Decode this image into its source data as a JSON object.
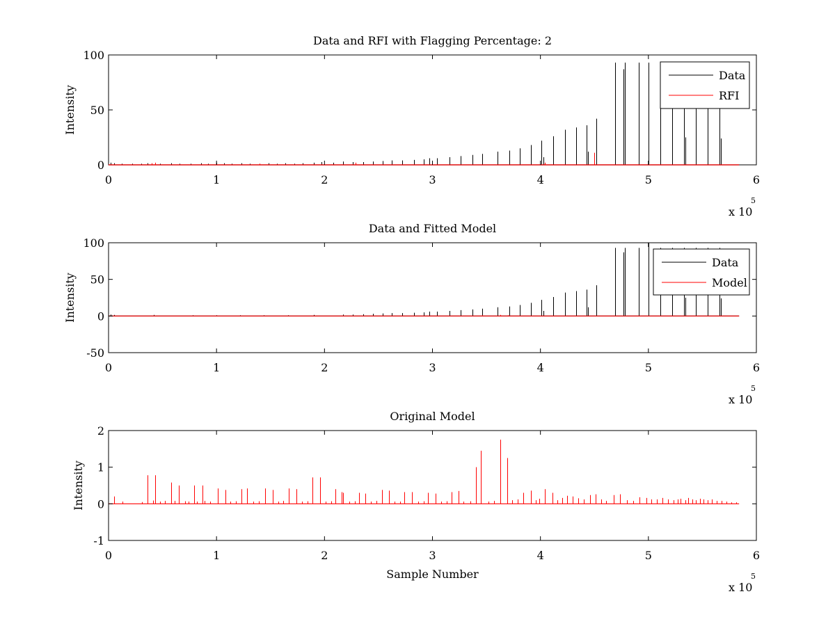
{
  "chart_data": [
    {
      "type": "line",
      "title": "Data and RFI with Flagging Percentage: 2",
      "xlabel": "",
      "ylabel": "Intensity",
      "xlim": [
        0,
        6
      ],
      "ylim": [
        0,
        100
      ],
      "x_ticks": [
        "0",
        "1",
        "2",
        "3",
        "4",
        "5",
        "6"
      ],
      "y_ticks": [
        "0",
        "50",
        "100"
      ],
      "x_exponent": "x 10",
      "x_exponent_power": "5",
      "x_range_end": 5.84,
      "legend": {
        "position": "top-right",
        "entries": [
          "Data",
          "RFI"
        ]
      },
      "series": [
        {
          "name": "Data",
          "color": "#000000",
          "spikes": [
            [
              0.02,
              2
            ],
            [
              0.05,
              1.5
            ],
            [
              0.12,
              1
            ],
            [
              0.22,
              1
            ],
            [
              0.3,
              1
            ],
            [
              0.36,
              1.5
            ],
            [
              0.43,
              1.5
            ],
            [
              0.48,
              1
            ],
            [
              0.58,
              1.5
            ],
            [
              0.66,
              1
            ],
            [
              0.76,
              1
            ],
            [
              0.86,
              1.5
            ],
            [
              0.92,
              1
            ],
            [
              1.0,
              2
            ],
            [
              1.07,
              1.5
            ],
            [
              1.14,
              1
            ],
            [
              1.23,
              1.5
            ],
            [
              1.31,
              1
            ],
            [
              1.4,
              1
            ],
            [
              1.48,
              1.5
            ],
            [
              1.56,
              1
            ],
            [
              1.64,
              1.5
            ],
            [
              1.72,
              1
            ],
            [
              1.8,
              1.5
            ],
            [
              1.9,
              2
            ],
            [
              1.97,
              2.5
            ],
            [
              2.08,
              2
            ],
            [
              2.17,
              3
            ],
            [
              2.26,
              2.5
            ],
            [
              2.36,
              2.5
            ],
            [
              2.45,
              3
            ],
            [
              2.54,
              3.5
            ],
            [
              2.62,
              4
            ],
            [
              2.72,
              4
            ],
            [
              2.83,
              4.5
            ],
            [
              2.92,
              5
            ],
            [
              2.97,
              6
            ],
            [
              3.04,
              6
            ],
            [
              3.16,
              7
            ],
            [
              3.26,
              8
            ],
            [
              3.37,
              9
            ],
            [
              3.46,
              10
            ],
            [
              3.6,
              12
            ],
            [
              3.71,
              13
            ],
            [
              3.81,
              15
            ],
            [
              3.91,
              18
            ],
            [
              4.01,
              22
            ],
            [
              4.03,
              7
            ],
            [
              4.12,
              26
            ],
            [
              4.23,
              32
            ],
            [
              4.33,
              34
            ],
            [
              4.43,
              36
            ],
            [
              4.44,
              12
            ],
            [
              4.52,
              42
            ],
            [
              4.69,
              93
            ],
            [
              4.77,
              87
            ],
            [
              4.78,
              93
            ],
            [
              4.91,
              93
            ],
            [
              5.0,
              93
            ],
            [
              5.11,
              93
            ],
            [
              5.22,
              93
            ],
            [
              5.33,
              93
            ],
            [
              5.34,
              25
            ],
            [
              5.44,
              93
            ],
            [
              5.55,
              93
            ],
            [
              5.66,
              93
            ],
            [
              5.67,
              24
            ]
          ]
        },
        {
          "name": "RFI",
          "color": "#ff0000",
          "spikes": [
            [
              0.4,
              1.5
            ],
            [
              0.43,
              2
            ],
            [
              1.4,
              1
            ],
            [
              2.29,
              2
            ],
            [
              4.04,
              2
            ],
            [
              4.5,
              11
            ]
          ]
        }
      ]
    },
    {
      "type": "line",
      "title": "Data and Fitted Model",
      "xlabel": "",
      "ylabel": "Intensity",
      "xlim": [
        0,
        6
      ],
      "ylim": [
        -50,
        100
      ],
      "x_ticks": [
        "0",
        "1",
        "2",
        "3",
        "4",
        "5",
        "6"
      ],
      "y_ticks": [
        "-50",
        "0",
        "50",
        "100"
      ],
      "x_exponent": "x 10",
      "x_exponent_power": "5",
      "x_range_end": 5.84,
      "legend": {
        "position": "top-right",
        "entries": [
          "Data",
          "Model"
        ]
      },
      "series": [
        {
          "name": "Data",
          "color": "#000000",
          "spikes": [
            [
              0.02,
              2
            ],
            [
              0.05,
              1.5
            ],
            [
              0.42,
              1.5
            ],
            [
              0.78,
              1
            ],
            [
              1.0,
              1
            ],
            [
              1.22,
              1
            ],
            [
              1.44,
              1
            ],
            [
              1.66,
              1
            ],
            [
              1.9,
              1.5
            ],
            [
              2.17,
              2
            ],
            [
              2.26,
              2
            ],
            [
              2.36,
              2.5
            ],
            [
              2.45,
              3
            ],
            [
              2.54,
              3.5
            ],
            [
              2.62,
              4
            ],
            [
              2.72,
              4
            ],
            [
              2.83,
              4.5
            ],
            [
              2.92,
              5
            ],
            [
              2.97,
              6
            ],
            [
              3.04,
              6
            ],
            [
              3.16,
              7
            ],
            [
              3.26,
              8
            ],
            [
              3.37,
              9
            ],
            [
              3.46,
              10
            ],
            [
              3.6,
              12
            ],
            [
              3.71,
              13
            ],
            [
              3.81,
              15
            ],
            [
              3.91,
              18
            ],
            [
              4.01,
              22
            ],
            [
              4.03,
              7
            ],
            [
              4.12,
              26
            ],
            [
              4.23,
              32
            ],
            [
              4.33,
              34
            ],
            [
              4.43,
              36
            ],
            [
              4.44,
              12
            ],
            [
              4.52,
              42
            ],
            [
              4.69,
              93
            ],
            [
              4.77,
              87
            ],
            [
              4.78,
              93
            ],
            [
              4.91,
              93
            ],
            [
              5.0,
              100
            ],
            [
              5.11,
              93
            ],
            [
              5.22,
              93
            ],
            [
              5.33,
              93
            ],
            [
              5.34,
              25
            ],
            [
              5.44,
              93
            ],
            [
              5.55,
              93
            ],
            [
              5.66,
              93
            ],
            [
              5.67,
              24
            ]
          ]
        },
        {
          "name": "Model",
          "color": "#ff0000",
          "spikes": [
            [
              0.42,
              0.5
            ],
            [
              1.91,
              0.5
            ],
            [
              2.17,
              0.5
            ],
            [
              3.46,
              1
            ],
            [
              3.63,
              1.5
            ],
            [
              3.7,
              1
            ]
          ]
        }
      ]
    },
    {
      "type": "line",
      "title": "Original Model",
      "xlabel": "Sample Number",
      "ylabel": "Intensity",
      "xlim": [
        0,
        6
      ],
      "ylim": [
        -1,
        2
      ],
      "x_ticks": [
        "0",
        "1",
        "2",
        "3",
        "4",
        "5",
        "6"
      ],
      "y_ticks": [
        "-1",
        "0",
        "1",
        "2"
      ],
      "x_exponent": "x 10",
      "x_exponent_power": "5",
      "x_range_end": 5.84,
      "series": [
        {
          "name": "Model",
          "color": "#ff0000",
          "spikes": [
            [
              0.05,
              0.2
            ],
            [
              0.13,
              0.06
            ],
            [
              0.31,
              0.05
            ],
            [
              0.36,
              0.78
            ],
            [
              0.41,
              0.09
            ],
            [
              0.43,
              0.78
            ],
            [
              0.48,
              0.06
            ],
            [
              0.52,
              0.08
            ],
            [
              0.58,
              0.58
            ],
            [
              0.61,
              0.08
            ],
            [
              0.65,
              0.5
            ],
            [
              0.71,
              0.07
            ],
            [
              0.74,
              0.06
            ],
            [
              0.79,
              0.5
            ],
            [
              0.82,
              0.06
            ],
            [
              0.87,
              0.5
            ],
            [
              0.89,
              0.08
            ],
            [
              0.94,
              0.06
            ],
            [
              1.01,
              0.42
            ],
            [
              1.08,
              0.38
            ],
            [
              1.13,
              0.06
            ],
            [
              1.18,
              0.07
            ],
            [
              1.23,
              0.4
            ],
            [
              1.28,
              0.42
            ],
            [
              1.34,
              0.06
            ],
            [
              1.39,
              0.07
            ],
            [
              1.45,
              0.42
            ],
            [
              1.52,
              0.38
            ],
            [
              1.57,
              0.06
            ],
            [
              1.62,
              0.08
            ],
            [
              1.67,
              0.42
            ],
            [
              1.74,
              0.4
            ],
            [
              1.79,
              0.06
            ],
            [
              1.84,
              0.07
            ],
            [
              1.89,
              0.72
            ],
            [
              1.96,
              0.72
            ],
            [
              2.01,
              0.06
            ],
            [
              2.06,
              0.07
            ],
            [
              2.1,
              0.4
            ],
            [
              2.16,
              0.32
            ],
            [
              2.17,
              0.3
            ],
            [
              2.23,
              0.06
            ],
            [
              2.28,
              0.07
            ],
            [
              2.32,
              0.3
            ],
            [
              2.38,
              0.28
            ],
            [
              2.43,
              0.06
            ],
            [
              2.48,
              0.08
            ],
            [
              2.53,
              0.38
            ],
            [
              2.6,
              0.36
            ],
            [
              2.65,
              0.06
            ],
            [
              2.7,
              0.06
            ],
            [
              2.74,
              0.32
            ],
            [
              2.81,
              0.32
            ],
            [
              2.87,
              0.06
            ],
            [
              2.92,
              0.07
            ],
            [
              2.96,
              0.3
            ],
            [
              3.03,
              0.28
            ],
            [
              3.08,
              0.06
            ],
            [
              3.13,
              0.07
            ],
            [
              3.18,
              0.32
            ],
            [
              3.24,
              0.35
            ],
            [
              3.29,
              0.06
            ],
            [
              3.35,
              0.07
            ],
            [
              3.4,
              1.0
            ],
            [
              3.45,
              1.45
            ],
            [
              3.52,
              0.06
            ],
            [
              3.57,
              0.08
            ],
            [
              3.63,
              1.75
            ],
            [
              3.69,
              1.25
            ],
            [
              3.74,
              0.1
            ],
            [
              3.79,
              0.12
            ],
            [
              3.84,
              0.3
            ],
            [
              3.91,
              0.36
            ],
            [
              3.96,
              0.1
            ],
            [
              3.99,
              0.14
            ],
            [
              4.04,
              0.4
            ],
            [
              4.11,
              0.3
            ],
            [
              4.16,
              0.1
            ],
            [
              4.2,
              0.16
            ],
            [
              4.25,
              0.22
            ],
            [
              4.3,
              0.2
            ],
            [
              4.35,
              0.15
            ],
            [
              4.4,
              0.12
            ],
            [
              4.46,
              0.24
            ],
            [
              4.51,
              0.26
            ],
            [
              4.56,
              0.12
            ],
            [
              4.61,
              0.08
            ],
            [
              4.68,
              0.24
            ],
            [
              4.74,
              0.26
            ],
            [
              4.8,
              0.1
            ],
            [
              4.86,
              0.08
            ],
            [
              4.92,
              0.18
            ],
            [
              4.98,
              0.16
            ],
            [
              5.03,
              0.12
            ],
            [
              5.08,
              0.12
            ],
            [
              5.13,
              0.16
            ],
            [
              5.18,
              0.12
            ],
            [
              5.23,
              0.1
            ],
            [
              5.27,
              0.12
            ],
            [
              5.3,
              0.14
            ],
            [
              5.34,
              0.1
            ],
            [
              5.37,
              0.16
            ],
            [
              5.41,
              0.12
            ],
            [
              5.44,
              0.1
            ],
            [
              5.48,
              0.14
            ],
            [
              5.51,
              0.12
            ],
            [
              5.55,
              0.1
            ],
            [
              5.59,
              0.12
            ],
            [
              5.63,
              0.08
            ],
            [
              5.68,
              0.08
            ],
            [
              5.72,
              0.06
            ],
            [
              5.77,
              0.04
            ],
            [
              5.81,
              0.04
            ]
          ]
        }
      ]
    }
  ]
}
